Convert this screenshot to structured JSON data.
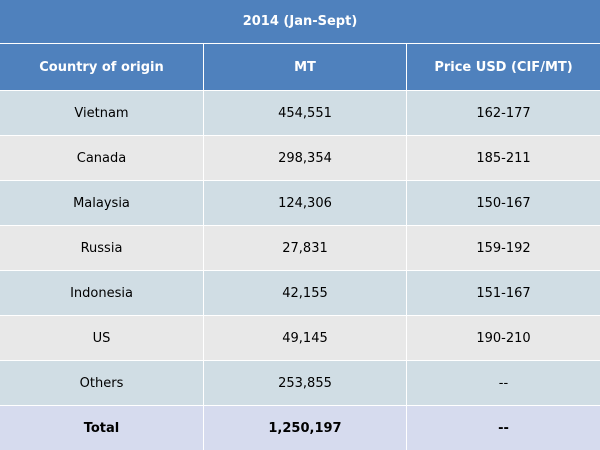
{
  "table": {
    "title": "2014 (Jan-Sept)",
    "headers": [
      "Country of origin",
      "MT",
      "Price USD (CIF/MT)"
    ],
    "rows": [
      {
        "country": "Vietnam",
        "mt": "454,551",
        "price": "162-177"
      },
      {
        "country": "Canada",
        "mt": "298,354",
        "price": "185-211"
      },
      {
        "country": "Malaysia",
        "mt": "124,306",
        "price": "150-167"
      },
      {
        "country": "Russia",
        "mt": "27,831",
        "price": "159-192"
      },
      {
        "country": "Indonesia",
        "mt": "42,155",
        "price": "151-167"
      },
      {
        "country": "US",
        "mt": "49,145",
        "price": "190-210"
      },
      {
        "country": "Others",
        "mt": "253,855",
        "price": "--"
      }
    ],
    "total": {
      "label": "Total",
      "mt": "1,250,197",
      "price": "--"
    }
  },
  "colors": {
    "header_bg": "#4f81bd",
    "row_odd_bg": "#d0dde4",
    "row_even_bg": "#e8e8e8",
    "total_bg": "#d6dbee"
  }
}
